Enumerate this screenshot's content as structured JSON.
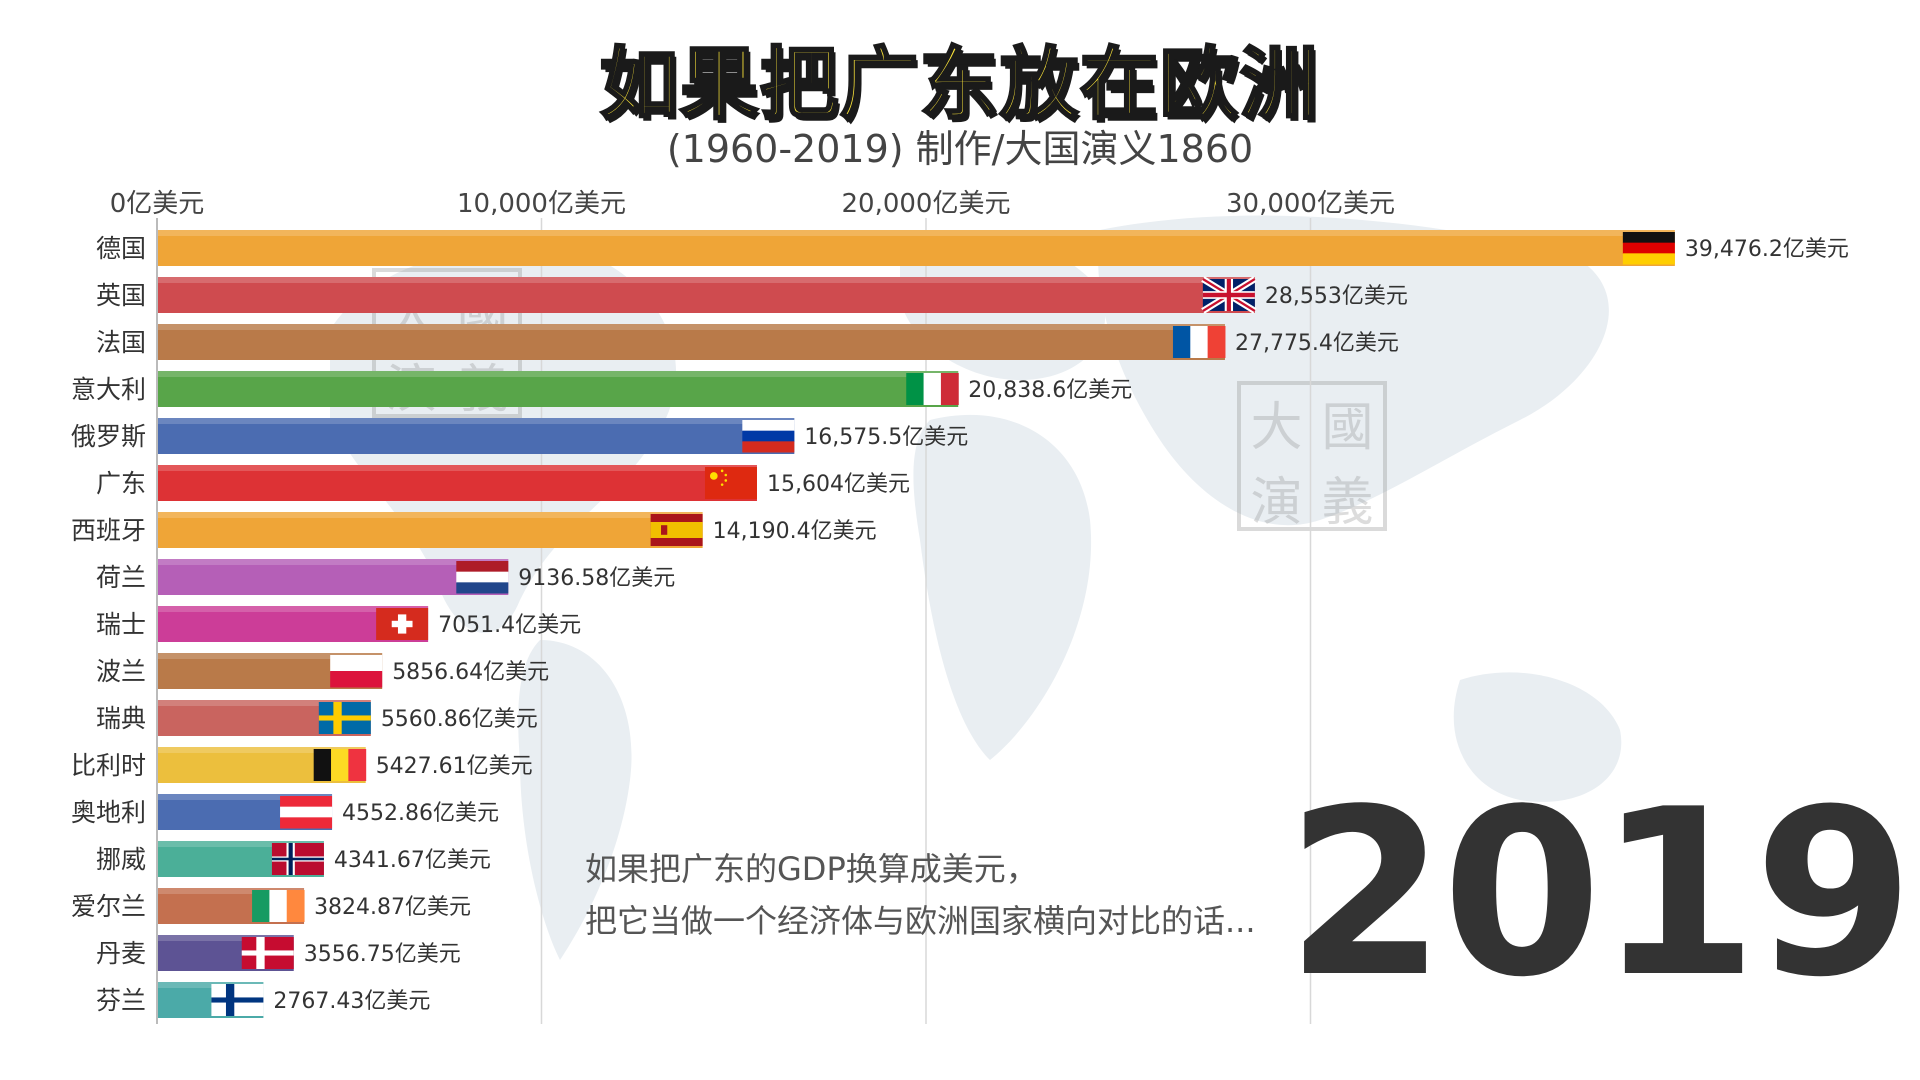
{
  "title": "如果把广东放在欧洲",
  "subtitle": "(1960-2019)  制作/大国演义1860",
  "year": "2019",
  "caption": {
    "line1": "如果把广东的GDP换算成美元，",
    "line2": "把它当做一个经济体与欧洲国家横向对比的话..."
  },
  "watermark": {
    "chars": [
      "大",
      "國",
      "演",
      "義"
    ]
  },
  "chart_data": {
    "type": "bar",
    "orientation": "horizontal",
    "unit": "亿美元",
    "xlim": [
      0,
      40000
    ],
    "ticks": [
      {
        "value": 0,
        "label": "0亿美元"
      },
      {
        "value": 10000,
        "label": "10,000亿美元"
      },
      {
        "value": 20000,
        "label": "20,000亿美元"
      },
      {
        "value": 30000,
        "label": "30,000亿美元"
      }
    ],
    "grid": true,
    "bars": [
      {
        "name": "德国",
        "value": 39476.2,
        "label": "39,476.2亿美元",
        "color": "#efa537",
        "flag": "germany-flag-icon"
      },
      {
        "name": "英国",
        "value": 28553,
        "label": "28,553亿美元",
        "color": "#cf4b4f",
        "flag": "uk-flag-icon"
      },
      {
        "name": "法国",
        "value": 27775.4,
        "label": "27,775.4亿美元",
        "color": "#b97a49",
        "flag": "france-flag-icon"
      },
      {
        "name": "意大利",
        "value": 20838.6,
        "label": "20,838.6亿美元",
        "color": "#58a549",
        "flag": "italy-flag-icon"
      },
      {
        "name": "俄罗斯",
        "value": 16575.5,
        "label": "16,575.5亿美元",
        "color": "#4b6cb1",
        "flag": "russia-flag-icon"
      },
      {
        "name": "广东",
        "value": 15604,
        "label": "15,604亿美元",
        "color": "#dd3235",
        "flag": "china-flag-icon"
      },
      {
        "name": "西班牙",
        "value": 14190.4,
        "label": "14,190.4亿美元",
        "color": "#efa537",
        "flag": "spain-flag-icon"
      },
      {
        "name": "荷兰",
        "value": 9136.58,
        "label": "9136.58亿美元",
        "color": "#b55fb7",
        "flag": "netherlands-flag-icon"
      },
      {
        "name": "瑞士",
        "value": 7051.4,
        "label": "7051.4亿美元",
        "color": "#cc3d98",
        "flag": "switzerland-flag-icon"
      },
      {
        "name": "波兰",
        "value": 5856.64,
        "label": "5856.64亿美元",
        "color": "#b97a49",
        "flag": "poland-flag-icon"
      },
      {
        "name": "瑞典",
        "value": 5560.86,
        "label": "5560.86亿美元",
        "color": "#c9645f",
        "flag": "sweden-flag-icon"
      },
      {
        "name": "比利时",
        "value": 5427.61,
        "label": "5427.61亿美元",
        "color": "#ecbf3d",
        "flag": "belgium-flag-icon"
      },
      {
        "name": "奥地利",
        "value": 4552.86,
        "label": "4552.86亿美元",
        "color": "#4b6cb1",
        "flag": "austria-flag-icon"
      },
      {
        "name": "挪威",
        "value": 4341.67,
        "label": "4341.67亿美元",
        "color": "#4baf98",
        "flag": "norway-flag-icon"
      },
      {
        "name": "爱尔兰",
        "value": 3824.87,
        "label": "3824.87亿美元",
        "color": "#c4704f",
        "flag": "ireland-flag-icon"
      },
      {
        "name": "丹麦",
        "value": 3556.75,
        "label": "3556.75亿美元",
        "color": "#5d5394",
        "flag": "denmark-flag-icon"
      },
      {
        "name": "芬兰",
        "value": 2767.43,
        "label": "2767.43亿美元",
        "color": "#4baaa8",
        "flag": "finland-flag-icon"
      }
    ]
  }
}
